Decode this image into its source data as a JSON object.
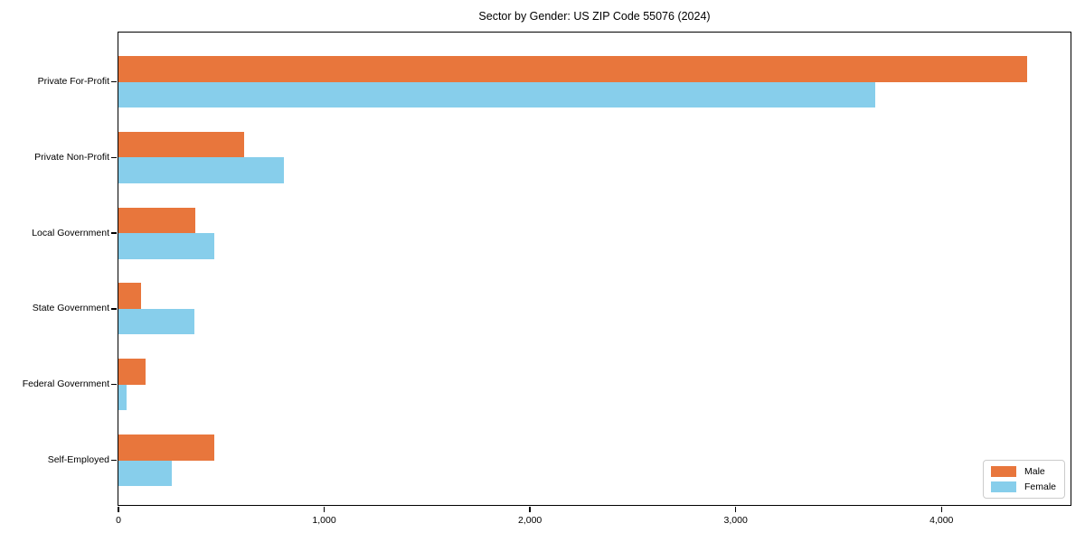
{
  "chart_data": {
    "type": "bar",
    "orientation": "horizontal",
    "title": "Sector by Gender: US ZIP Code 55076 (2024)",
    "categories": [
      "Private For-Profit",
      "Private Non-Profit",
      "Local Government",
      "State Government",
      "Federal Government",
      "Self-Employed"
    ],
    "series": [
      {
        "name": "Male",
        "color": "#e8763c",
        "values": [
          4415,
          610,
          375,
          110,
          130,
          465
        ]
      },
      {
        "name": "Female",
        "color": "#87ceeb",
        "values": [
          3680,
          805,
          465,
          370,
          40,
          260
        ]
      }
    ],
    "xlabel": "",
    "ylabel": "",
    "xlim": [
      0,
      4636
    ],
    "xticks": [
      0,
      1000,
      2000,
      3000,
      4000
    ],
    "xtick_labels": [
      "0",
      "1,000",
      "2,000",
      "3,000",
      "4,000"
    ],
    "grid": false,
    "legend_position": "lower right",
    "background_color": "#ffffff",
    "spine_color": "#000000"
  }
}
